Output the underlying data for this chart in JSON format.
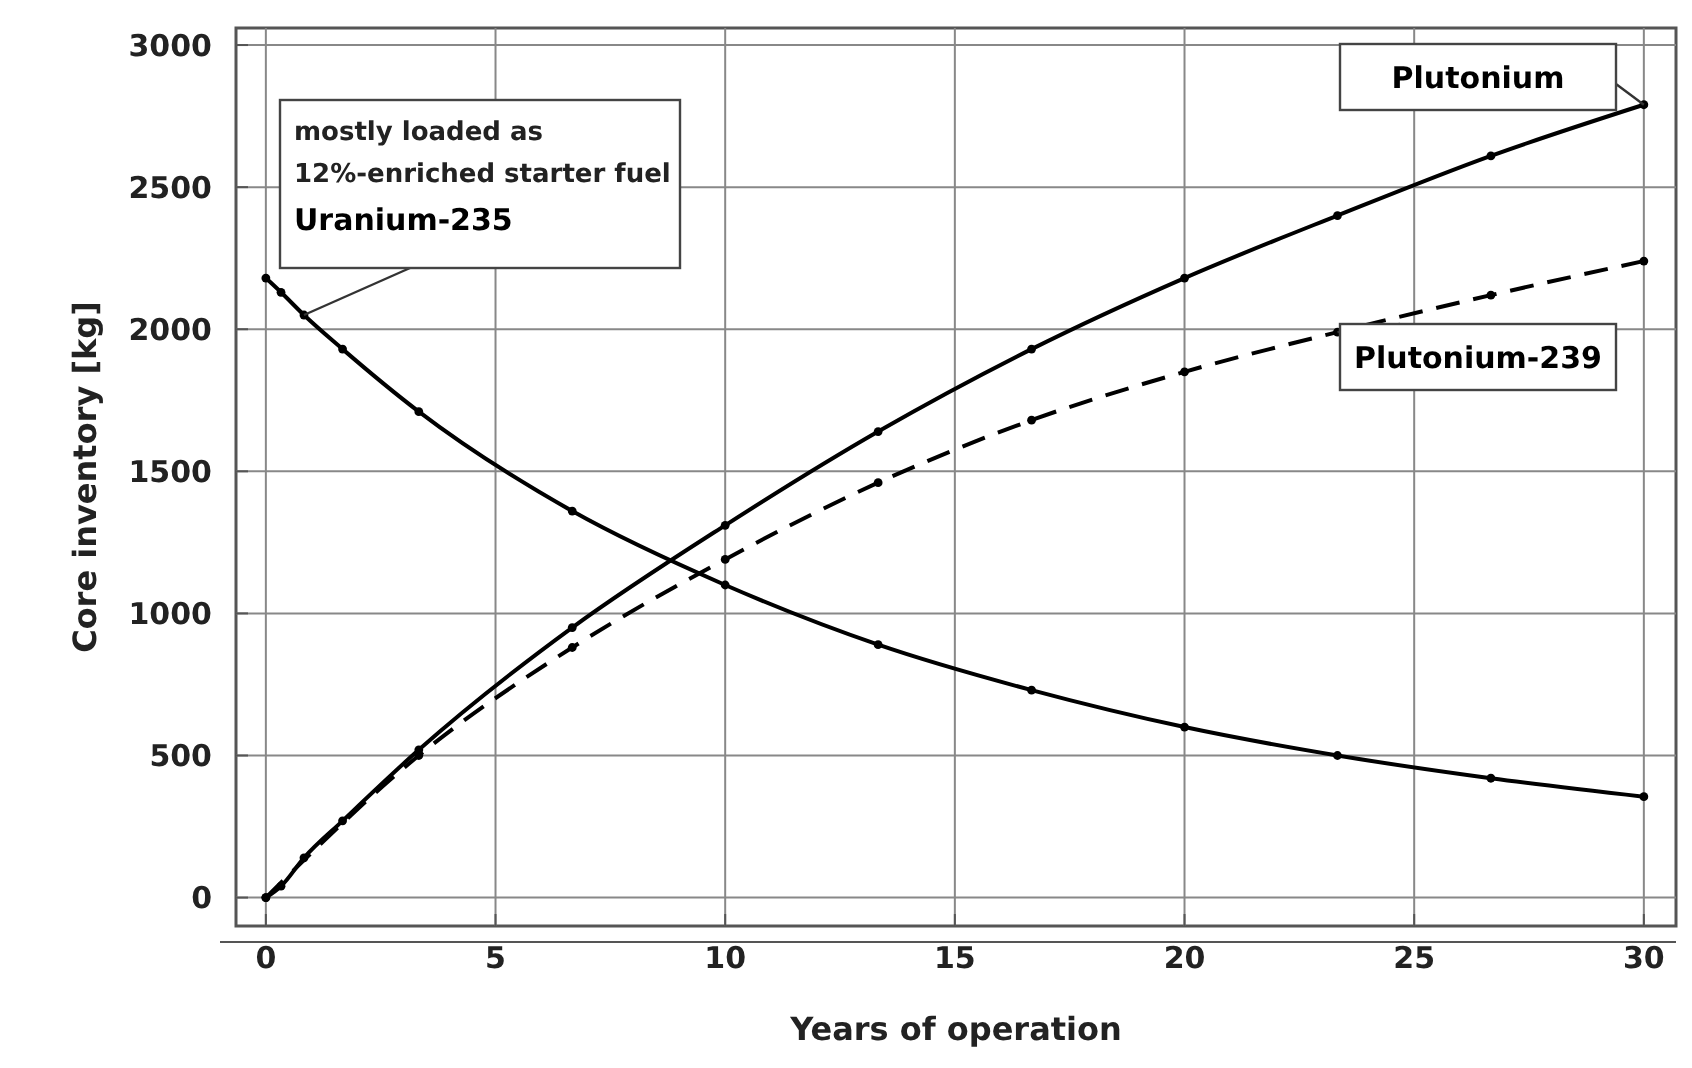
{
  "chart_data": {
    "type": "line",
    "xlabel": "Years of operation",
    "ylabel": "Core inventory [kg]",
    "xlim": [
      -0.65,
      30.7
    ],
    "ylim": [
      -100,
      3060
    ],
    "xticks": [
      0,
      5,
      10,
      15,
      20,
      25,
      30
    ],
    "yticks": [
      0,
      500,
      1000,
      1500,
      2000,
      2500,
      3000
    ],
    "grid": true,
    "legend": false,
    "marker": "circle",
    "annotations": [
      "mostly loaded as\n12%-enriched starter fuel"
    ],
    "series": [
      {
        "name": "Uranium-235",
        "color": "#000000",
        "line_style": "solid",
        "x": [
          0,
          0.33,
          0.83,
          1.67,
          3.33,
          6.67,
          10,
          13.33,
          16.67,
          20,
          23.33,
          26.67,
          30
        ],
        "values": [
          2180,
          2130,
          2050,
          1930,
          1710,
          1360,
          1100,
          890,
          730,
          600,
          500,
          420,
          355
        ]
      },
      {
        "name": "Plutonium",
        "color": "#000000",
        "line_style": "solid",
        "x": [
          0,
          0.33,
          0.83,
          1.67,
          3.33,
          6.67,
          10,
          13.33,
          16.67,
          20,
          23.33,
          26.67,
          30
        ],
        "values": [
          0,
          40,
          140,
          270,
          520,
          950,
          1310,
          1640,
          1930,
          2180,
          2400,
          2610,
          2790
        ]
      },
      {
        "name": "Plutonium-239",
        "color": "#000000",
        "line_style": "dashed",
        "x": [
          0,
          3.33,
          6.67,
          10,
          13.33,
          16.67,
          20,
          23.33,
          26.67,
          30
        ],
        "values": [
          0,
          500,
          880,
          1190,
          1460,
          1680,
          1850,
          1990,
          2120,
          2240
        ]
      }
    ]
  }
}
